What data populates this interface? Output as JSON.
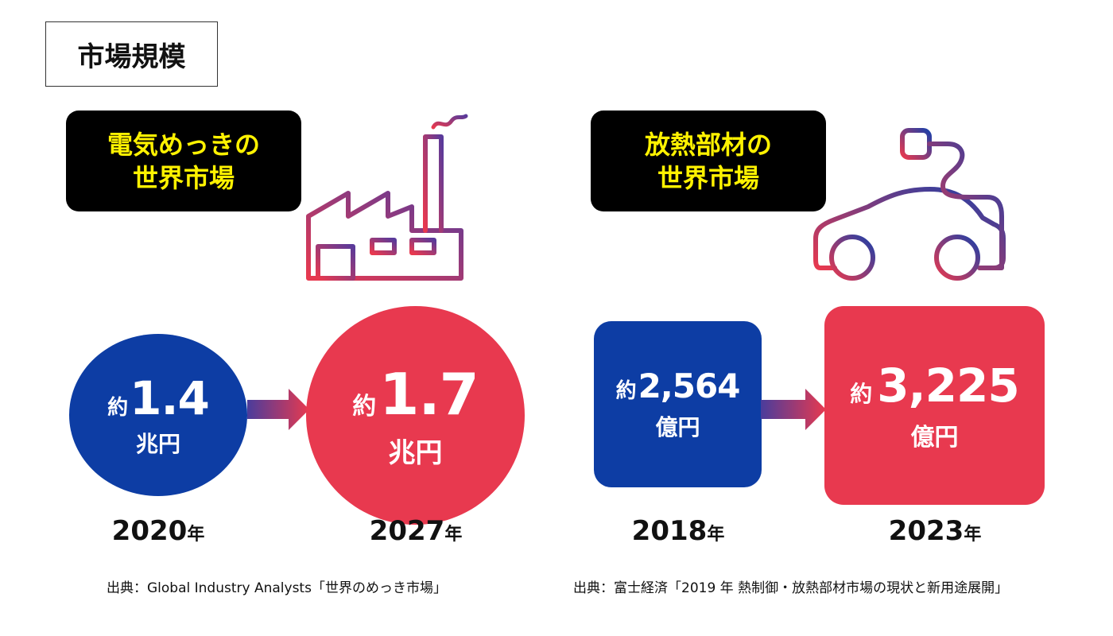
{
  "section_title": "市場規模",
  "left": {
    "label_line1": "電気めっきの",
    "label_line2": "世界市場",
    "icon": "factory-icon",
    "before": {
      "prefix": "約",
      "value": "1.4",
      "unit": "兆円",
      "year": "2020",
      "year_suffix": "年"
    },
    "after": {
      "prefix": "約",
      "value": "1.7",
      "unit": "兆円",
      "year": "2027",
      "year_suffix": "年"
    },
    "source": "出典：Global Industry Analysts「世界のめっき市場」"
  },
  "right": {
    "label_line1": "放熱部材の",
    "label_line2": "世界市場",
    "icon": "electric-car-plug-icon",
    "before": {
      "prefix": "約",
      "value": "2,564",
      "unit": "億円",
      "year": "2018",
      "year_suffix": "年"
    },
    "after": {
      "prefix": "約",
      "value": "3,225",
      "unit": "億円",
      "year": "2023",
      "year_suffix": "年"
    },
    "source": "出典：富士経済「2019 年 熱制御・放熱部材市場の現状と新用途展開」"
  },
  "colors": {
    "blue": "#0d3da4",
    "red": "#e8394f",
    "label_bg": "#000000",
    "label_text": "#fff200",
    "gradient_start": "#e8394f",
    "gradient_end": "#5a3a9a"
  }
}
